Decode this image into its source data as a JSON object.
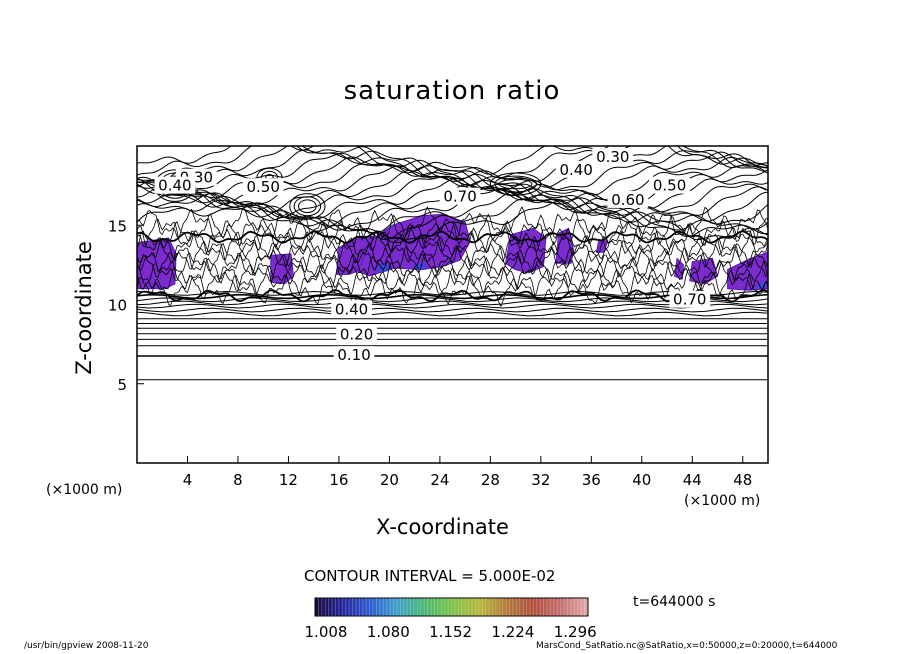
{
  "chart_data": {
    "type": "contour",
    "title": "saturation ratio",
    "xlabel": "X-coordinate",
    "ylabel": "Z-coordinate",
    "x_unit": "(×1000 m)",
    "y_unit": "(×1000 m)",
    "xlim": [
      0,
      50
    ],
    "ylim": [
      0,
      20
    ],
    "x_ticks": [
      4,
      8,
      12,
      16,
      20,
      24,
      28,
      32,
      36,
      40,
      44,
      48
    ],
    "y_ticks": [
      5,
      10,
      15
    ],
    "contour_interval_text": "CONTOUR INTERVAL = 5.000E-02",
    "contour_labels": [
      {
        "text": "0.30",
        "x": 37.7,
        "z": 19.3
      },
      {
        "text": "0.40",
        "x": 34.8,
        "z": 18.5
      },
      {
        "text": "0.50",
        "x": 42.2,
        "z": 17.5
      },
      {
        "text": "0.60",
        "x": 38.9,
        "z": 16.6
      },
      {
        "text": "0.70",
        "x": 25.6,
        "z": 16.8
      },
      {
        "text": "0.30",
        "x": 4.7,
        "z": 18.0
      },
      {
        "text": "0.40",
        "x": 3.0,
        "z": 17.5
      },
      {
        "text": "0.50",
        "x": 10.0,
        "z": 17.4
      },
      {
        "text": "0.70",
        "x": 43.8,
        "z": 10.3
      },
      {
        "text": "0.40",
        "x": 17.0,
        "z": 9.7
      },
      {
        "text": "0.20",
        "x": 17.4,
        "z": 8.1
      },
      {
        "text": "0.10",
        "x": 17.2,
        "z": 6.8
      }
    ],
    "supersaturated_range": [
      1.008,
      1.3
    ],
    "time_label": "t=644000 s"
  },
  "colorbar": {
    "tick_labels": [
      "1.008",
      "1.080",
      "1.152",
      "1.224",
      "1.296"
    ],
    "stops": [
      "#1c0a3a",
      "#23249a",
      "#2f5bd0",
      "#3fa0c8",
      "#49b874",
      "#7cc24a",
      "#b6b83c",
      "#b47a3a",
      "#b2503e",
      "#c47070",
      "#e4a8a8"
    ]
  },
  "colors": {
    "fill_purple": "#7b2bd0",
    "fill_deep": "#5a18b8",
    "fill_blue": "#2a4ed8",
    "line": "#000000"
  },
  "footer": {
    "left": "/usr/bin/gpview   2008-11-20",
    "right": "MarsCond_SatRatio.nc@SatRatio,x=0:50000,z=0:20000,t=644000"
  }
}
